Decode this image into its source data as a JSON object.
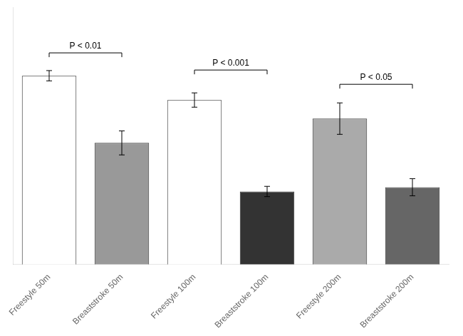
{
  "chart_data": {
    "type": "bar",
    "categories": [
      "Freestyle 50m",
      "Breaststroke 50m",
      "Freestyle 100m",
      "Breaststroke 100m",
      "Freestyle 200m",
      "Breaststroke 200m"
    ],
    "values": [
      1.96,
      1.725,
      1.875,
      1.555,
      1.81,
      1.57
    ],
    "errors": [
      0.018,
      0.042,
      0.025,
      0.018,
      0.055,
      0.03
    ],
    "colors": [
      "#ffffff",
      "#999999",
      "#ffffff",
      "#333333",
      "#aaaaaa",
      "#666666"
    ],
    "annotations": [
      {
        "from": "Freestyle 50m",
        "to": "Breaststroke 50m",
        "y": 2.04,
        "text": "P < 0.01"
      },
      {
        "from": "Freestyle 100m",
        "to": "Breaststroke 100m",
        "y": 1.98,
        "text": "P < 0.001"
      },
      {
        "from": "Freestyle 200m",
        "to": "Breaststroke 200m",
        "y": 1.93,
        "text": "P < 0.05"
      }
    ],
    "ylim": [
      1.3,
      2.2
    ],
    "grid": false,
    "tick_labels": "x"
  }
}
